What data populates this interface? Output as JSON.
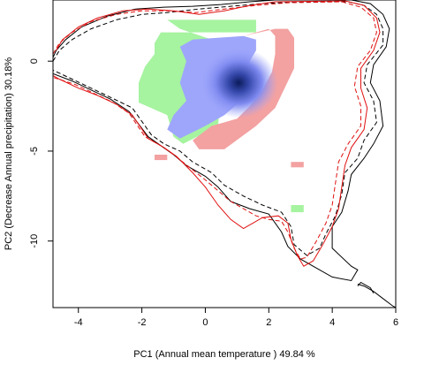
{
  "chart_data": {
    "type": "heatmap",
    "title": "",
    "xlabel": "PC1 (Annual mean temperature ) 49.84 %",
    "ylabel": "PC2 (Decrease Annual precipitation) 30.18%",
    "xlim": [
      -4.8,
      6.0
    ],
    "ylim": [
      -13.7,
      3.4
    ],
    "x_ticks": [
      -4,
      -2,
      0,
      2,
      4,
      6
    ],
    "y_ticks": [
      -10,
      -5,
      0
    ],
    "x_tick_labels": [
      "-4",
      "-2",
      "0",
      "2",
      "4",
      "6"
    ],
    "y_tick_labels": [
      "-10",
      "-5",
      "0"
    ],
    "legend": "none",
    "grid": false,
    "colors": {
      "overlap_blue": "#9ea6fb",
      "overlap_dark": "#0b1b5a",
      "green_only": "#a6f3a0",
      "red_only": "#f3a1a1",
      "envelope_black": "#000000",
      "envelope_red": "#e01010"
    },
    "regions": {
      "green": [
        [
          -1.2,
          2.3
        ],
        [
          1.6,
          2.3
        ],
        [
          1.6,
          1.6
        ],
        [
          -1.4,
          1.6
        ],
        [
          -1.6,
          1.0
        ],
        [
          -1.6,
          0.4
        ],
        [
          -1.9,
          -0.3
        ],
        [
          -2.1,
          -1.2
        ],
        [
          -2.1,
          -2.3
        ],
        [
          -1.2,
          -3.0
        ],
        [
          -1.0,
          -4.2
        ],
        [
          -0.7,
          -4.6
        ],
        [
          0.4,
          -3.6
        ],
        [
          0.6,
          -0.2
        ],
        [
          0.2,
          1.2
        ],
        [
          -0.8,
          1.8
        ]
      ],
      "red": [
        [
          1.2,
          1.4
        ],
        [
          2.0,
          1.8
        ],
        [
          2.2,
          1.4
        ],
        [
          2.2,
          0.4
        ],
        [
          2.1,
          -0.6
        ],
        [
          1.8,
          -1.6
        ],
        [
          1.4,
          -2.5
        ],
        [
          1.0,
          -3.2
        ],
        [
          0.2,
          -3.6
        ],
        [
          -0.4,
          -4.4
        ],
        [
          -0.2,
          -4.9
        ],
        [
          0.6,
          -4.9
        ],
        [
          1.6,
          -3.6
        ],
        [
          2.2,
          -2.6
        ],
        [
          2.8,
          -0.4
        ],
        [
          2.8,
          1.3
        ],
        [
          2.6,
          1.8
        ],
        [
          2.2,
          1.8
        ]
      ],
      "blue": [
        [
          -0.4,
          1.2
        ],
        [
          1.2,
          1.4
        ],
        [
          1.6,
          1.2
        ],
        [
          1.6,
          0.6
        ],
        [
          1.4,
          0.0
        ],
        [
          1.4,
          -1.0
        ],
        [
          1.0,
          -2.4
        ],
        [
          0.6,
          -3.0
        ],
        [
          0.0,
          -3.6
        ],
        [
          -0.8,
          -4.3
        ],
        [
          -1.2,
          -3.8
        ],
        [
          -1.0,
          -3.0
        ],
        [
          -0.6,
          -2.2
        ],
        [
          -0.8,
          -1.2
        ],
        [
          -0.6,
          0.0
        ],
        [
          -0.8,
          0.8
        ]
      ],
      "red_patches": [
        [
          [
            -1.6,
            -5.2
          ],
          [
            -1.2,
            -5.2
          ],
          [
            -1.2,
            -5.5
          ],
          [
            -1.6,
            -5.5
          ]
        ],
        [
          [
            2.7,
            -5.6
          ],
          [
            3.1,
            -5.6
          ],
          [
            3.1,
            -5.9
          ],
          [
            2.7,
            -5.9
          ]
        ]
      ],
      "green_patches": [
        [
          [
            2.7,
            -8.0
          ],
          [
            3.1,
            -8.0
          ],
          [
            3.1,
            -8.4
          ],
          [
            2.7,
            -8.4
          ]
        ]
      ]
    },
    "peak": {
      "x": 1.05,
      "y": -1.2
    },
    "envelopes": [
      {
        "style": "solid",
        "color": "envelope_black",
        "points": [
          [
            -4.8,
            0.2
          ],
          [
            -4.7,
            0.6
          ],
          [
            -4.4,
            1.2
          ],
          [
            -3.9,
            1.9
          ],
          [
            -3.1,
            2.5
          ],
          [
            -2.2,
            2.9
          ],
          [
            -1.3,
            3.0
          ],
          [
            -0.4,
            3.05
          ],
          [
            0.5,
            3.15
          ],
          [
            1.4,
            3.3
          ],
          [
            2.2,
            3.4
          ],
          [
            4.6,
            3.4
          ],
          [
            5.2,
            3.2
          ],
          [
            5.6,
            2.6
          ],
          [
            5.8,
            1.8
          ],
          [
            5.7,
            0.8
          ],
          [
            5.3,
            -0.2
          ],
          [
            5.2,
            -1.2
          ],
          [
            5.5,
            -2.2
          ],
          [
            5.6,
            -3.6
          ],
          [
            5.3,
            -4.6
          ],
          [
            5.0,
            -5.4
          ],
          [
            4.6,
            -6.3
          ],
          [
            4.5,
            -7.2
          ],
          [
            4.3,
            -8.4
          ],
          [
            4.0,
            -9.2
          ],
          [
            4.0,
            -10.4
          ],
          [
            4.6,
            -11.4
          ],
          [
            4.8,
            -11.6
          ],
          [
            4.6,
            -12.2
          ],
          [
            4.0,
            -12.0
          ],
          [
            3.6,
            -11.6
          ],
          [
            3.0,
            -11.0
          ],
          [
            2.6,
            -10.3
          ],
          [
            2.4,
            -9.5
          ],
          [
            2.0,
            -8.5
          ],
          [
            1.4,
            -8.2
          ],
          [
            0.8,
            -7.8
          ],
          [
            0.4,
            -7.0
          ],
          [
            0.0,
            -6.4
          ],
          [
            -0.6,
            -5.8
          ],
          [
            -1.0,
            -5.2
          ],
          [
            -1.4,
            -4.7
          ],
          [
            -1.8,
            -4.2
          ],
          [
            -2.4,
            -2.8
          ],
          [
            -3.0,
            -2.1
          ],
          [
            -3.6,
            -1.6
          ],
          [
            -4.2,
            -1.1
          ],
          [
            -4.8,
            -0.7
          ]
        ]
      },
      {
        "style": "dashed",
        "color": "envelope_black",
        "points": [
          [
            -4.8,
            0.0
          ],
          [
            -4.6,
            0.6
          ],
          [
            -4.2,
            1.2
          ],
          [
            -3.6,
            1.8
          ],
          [
            -2.8,
            2.3
          ],
          [
            -2.0,
            2.6
          ],
          [
            -1.2,
            2.7
          ],
          [
            -0.2,
            2.9
          ],
          [
            0.8,
            3.05
          ],
          [
            1.8,
            3.2
          ],
          [
            3.0,
            3.3
          ],
          [
            4.5,
            3.3
          ],
          [
            5.0,
            3.1
          ],
          [
            5.4,
            2.6
          ],
          [
            5.6,
            1.8
          ],
          [
            5.6,
            0.9
          ],
          [
            5.1,
            -0.2
          ],
          [
            5.0,
            -1.2
          ],
          [
            5.3,
            -2.2
          ],
          [
            5.4,
            -3.4
          ],
          [
            5.0,
            -4.4
          ],
          [
            4.8,
            -5.4
          ],
          [
            4.4,
            -6.2
          ],
          [
            4.3,
            -7.4
          ],
          [
            4.1,
            -8.6
          ],
          [
            3.8,
            -9.6
          ],
          [
            3.6,
            -10.4
          ],
          [
            3.2,
            -10.8
          ],
          [
            2.8,
            -10.2
          ],
          [
            2.7,
            -9.2
          ],
          [
            2.4,
            -8.4
          ],
          [
            1.8,
            -8.0
          ],
          [
            1.2,
            -7.5
          ],
          [
            0.6,
            -6.9
          ],
          [
            0.2,
            -6.2
          ],
          [
            -0.4,
            -5.6
          ],
          [
            -0.8,
            -5.0
          ],
          [
            -1.3,
            -4.6
          ],
          [
            -1.7,
            -4.1
          ],
          [
            -2.3,
            -2.6
          ],
          [
            -3.0,
            -2.0
          ],
          [
            -3.6,
            -1.5
          ],
          [
            -4.2,
            -1.0
          ],
          [
            -4.8,
            -0.5
          ]
        ]
      },
      {
        "style": "solid",
        "color": "envelope_red",
        "points": [
          [
            -4.7,
            0.6
          ],
          [
            -4.5,
            1.2
          ],
          [
            -4.0,
            1.9
          ],
          [
            -3.4,
            2.4
          ],
          [
            -2.6,
            2.8
          ],
          [
            -1.8,
            2.9
          ],
          [
            -1.0,
            2.8
          ],
          [
            -0.2,
            2.6
          ],
          [
            0.6,
            2.8
          ],
          [
            1.4,
            3.1
          ],
          [
            2.2,
            3.3
          ],
          [
            4.4,
            3.35
          ],
          [
            5.0,
            3.1
          ],
          [
            5.4,
            2.4
          ],
          [
            5.5,
            1.6
          ],
          [
            5.3,
            0.6
          ],
          [
            4.9,
            -0.4
          ],
          [
            4.9,
            -1.5
          ],
          [
            5.1,
            -2.6
          ],
          [
            5.0,
            -3.8
          ],
          [
            4.6,
            -4.8
          ],
          [
            4.4,
            -5.8
          ],
          [
            4.3,
            -7.0
          ],
          [
            4.2,
            -8.2
          ],
          [
            4.0,
            -9.2
          ],
          [
            3.7,
            -10.2
          ],
          [
            3.4,
            -11.1
          ],
          [
            3.1,
            -11.4
          ],
          [
            2.9,
            -10.8
          ],
          [
            2.7,
            -9.9
          ],
          [
            2.6,
            -9.0
          ],
          [
            2.3,
            -8.6
          ],
          [
            1.8,
            -8.7
          ],
          [
            1.5,
            -9.0
          ],
          [
            1.2,
            -9.3
          ],
          [
            0.8,
            -8.8
          ],
          [
            0.4,
            -8.0
          ],
          [
            0.0,
            -7.0
          ],
          [
            -0.4,
            -6.2
          ],
          [
            -0.9,
            -5.3
          ],
          [
            -1.3,
            -4.8
          ],
          [
            -1.8,
            -4.3
          ],
          [
            -2.3,
            -3.0
          ],
          [
            -2.8,
            -2.4
          ],
          [
            -3.4,
            -1.9
          ],
          [
            -4.0,
            -1.5
          ],
          [
            -4.6,
            -1.0
          ],
          [
            -4.8,
            -0.8
          ]
        ]
      },
      {
        "style": "dashed",
        "color": "envelope_red",
        "points": [
          [
            -4.8,
            0.4
          ],
          [
            -4.6,
            1.0
          ],
          [
            -4.2,
            1.6
          ],
          [
            -3.6,
            2.2
          ],
          [
            -2.8,
            2.6
          ],
          [
            -2.0,
            2.8
          ],
          [
            -1.2,
            2.8
          ],
          [
            -0.3,
            2.7
          ],
          [
            0.6,
            2.9
          ],
          [
            1.6,
            3.1
          ],
          [
            2.6,
            3.25
          ],
          [
            4.3,
            3.3
          ],
          [
            4.9,
            3.0
          ],
          [
            5.3,
            2.4
          ],
          [
            5.4,
            1.6
          ],
          [
            5.2,
            0.6
          ],
          [
            4.8,
            -0.3
          ],
          [
            4.7,
            -1.4
          ],
          [
            4.9,
            -2.5
          ],
          [
            4.9,
            -3.6
          ],
          [
            4.5,
            -4.6
          ],
          [
            4.2,
            -5.6
          ],
          [
            4.1,
            -6.8
          ],
          [
            4.0,
            -8.0
          ],
          [
            3.8,
            -9.0
          ],
          [
            3.5,
            -10.0
          ],
          [
            3.2,
            -10.9
          ],
          [
            3.0,
            -11.0
          ],
          [
            2.8,
            -10.4
          ],
          [
            2.6,
            -9.5
          ],
          [
            2.4,
            -8.9
          ],
          [
            2.0,
            -8.8
          ],
          [
            1.6,
            -8.6
          ],
          [
            1.2,
            -8.2
          ],
          [
            0.8,
            -7.8
          ],
          [
            0.4,
            -7.2
          ],
          [
            0.0,
            -6.6
          ],
          [
            -0.5,
            -5.9
          ],
          [
            -1.0,
            -5.2
          ],
          [
            -1.4,
            -4.7
          ],
          [
            -1.9,
            -4.2
          ],
          [
            -2.4,
            -2.9
          ],
          [
            -2.9,
            -2.3
          ],
          [
            -3.5,
            -1.8
          ],
          [
            -4.1,
            -1.3
          ],
          [
            -4.8,
            -0.9
          ]
        ]
      },
      {
        "style": "solid",
        "color": "envelope_black",
        "points": [
          [
            4.8,
            -12.4
          ],
          [
            5.0,
            -12.5
          ],
          [
            5.3,
            -12.8
          ],
          [
            5.6,
            -13.2
          ],
          [
            5.9,
            -13.6
          ],
          [
            6.0,
            -13.7
          ]
        ]
      },
      {
        "style": "solid",
        "color": "envelope_black",
        "points": [
          [
            4.8,
            -12.5
          ],
          [
            4.9,
            -12.3
          ],
          [
            5.2,
            -12.6
          ],
          [
            5.3,
            -12.9
          ]
        ]
      }
    ]
  }
}
